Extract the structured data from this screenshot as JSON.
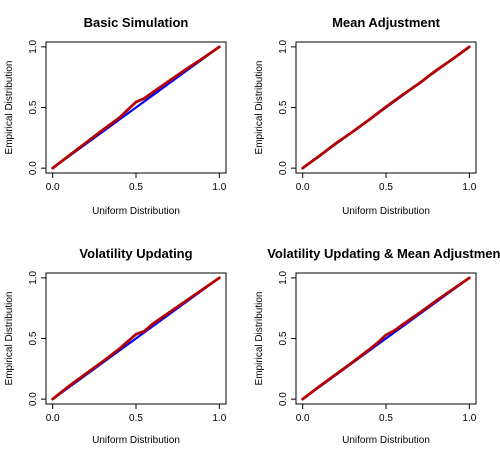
{
  "chart_data": [
    {
      "type": "line",
      "title": "Basic Simulation",
      "xlabel": "Uniform Distribution",
      "ylabel": "Empirical Distribution",
      "xlim": [
        0,
        1
      ],
      "ylim": [
        0,
        1
      ],
      "xticks": [
        "0.0",
        "0.5",
        "1.0"
      ],
      "yticks": [
        "0.0",
        "0.5",
        "1.0"
      ],
      "grid": false,
      "series": [
        {
          "color": "#0000ff",
          "x": [
            0,
            1
          ],
          "y": [
            0,
            1
          ]
        },
        {
          "color": "#b30000",
          "x": [
            0,
            0.1,
            0.2,
            0.3,
            0.4,
            0.45,
            0.5,
            0.55,
            0.6,
            0.7,
            0.8,
            0.9,
            1.0
          ],
          "y": [
            0,
            0.105,
            0.21,
            0.315,
            0.415,
            0.48,
            0.545,
            0.575,
            0.625,
            0.72,
            0.815,
            0.905,
            1.0
          ]
        }
      ]
    },
    {
      "type": "line",
      "title": "Mean Adjustment",
      "xlabel": "Uniform Distribution",
      "ylabel": "Empirical Distribution",
      "xlim": [
        0,
        1
      ],
      "ylim": [
        0,
        1
      ],
      "xticks": [
        "0.0",
        "0.5",
        "1.0"
      ],
      "yticks": [
        "0.0",
        "0.5",
        "1.0"
      ],
      "grid": false,
      "series": [
        {
          "color": "#0000ff",
          "x": [
            0,
            1
          ],
          "y": [
            0,
            1
          ]
        },
        {
          "color": "#b30000",
          "x": [
            0,
            0.1,
            0.2,
            0.3,
            0.4,
            0.5,
            0.6,
            0.7,
            0.8,
            0.9,
            1.0
          ],
          "y": [
            0,
            0.1,
            0.205,
            0.3,
            0.4,
            0.505,
            0.605,
            0.7,
            0.805,
            0.9,
            1.0
          ]
        }
      ]
    },
    {
      "type": "line",
      "title": "Volatility Updating",
      "xlabel": "Uniform Distribution",
      "ylabel": "Empirical Distribution",
      "xlim": [
        0,
        1
      ],
      "ylim": [
        0,
        1
      ],
      "xticks": [
        "0.0",
        "0.5",
        "1.0"
      ],
      "yticks": [
        "0.0",
        "0.5",
        "1.0"
      ],
      "grid": false,
      "series": [
        {
          "color": "#0000ff",
          "x": [
            0,
            1
          ],
          "y": [
            0,
            1
          ]
        },
        {
          "color": "#b30000",
          "x": [
            0,
            0.1,
            0.2,
            0.3,
            0.4,
            0.45,
            0.5,
            0.55,
            0.6,
            0.7,
            0.8,
            0.9,
            1.0
          ],
          "y": [
            0,
            0.11,
            0.21,
            0.31,
            0.415,
            0.475,
            0.535,
            0.56,
            0.62,
            0.715,
            0.81,
            0.905,
            1.0
          ]
        }
      ]
    },
    {
      "type": "line",
      "title": "Volatility Updating & Mean Adjustment",
      "xlabel": "Uniform Distribution",
      "ylabel": "Empirical Distribution",
      "xlim": [
        0,
        1
      ],
      "ylim": [
        0,
        1
      ],
      "xticks": [
        "0.0",
        "0.5",
        "1.0"
      ],
      "yticks": [
        "0.0",
        "0.5",
        "1.0"
      ],
      "grid": false,
      "series": [
        {
          "color": "#0000ff",
          "x": [
            0,
            1
          ],
          "y": [
            0,
            1
          ]
        },
        {
          "color": "#b30000",
          "x": [
            0,
            0.1,
            0.2,
            0.3,
            0.4,
            0.45,
            0.5,
            0.55,
            0.6,
            0.7,
            0.8,
            0.9,
            1.0
          ],
          "y": [
            0,
            0.105,
            0.205,
            0.305,
            0.41,
            0.465,
            0.53,
            0.565,
            0.615,
            0.71,
            0.81,
            0.905,
            1.0
          ]
        }
      ]
    }
  ]
}
